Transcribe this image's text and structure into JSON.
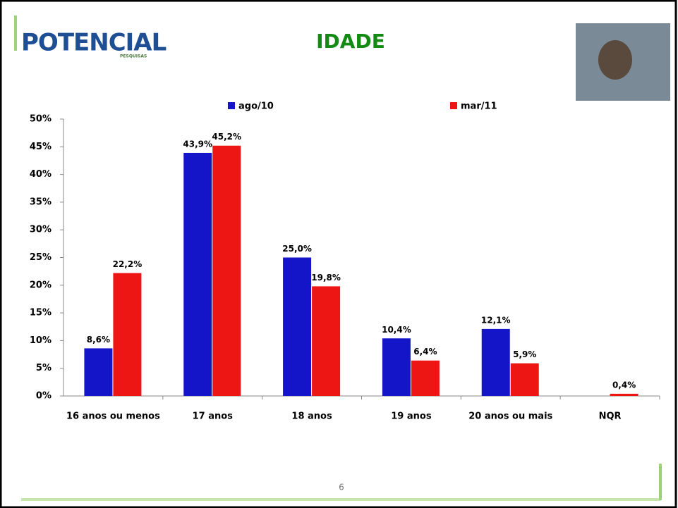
{
  "logo": {
    "name": "POTENCIAL",
    "tagline": "PESQUISAS"
  },
  "page_number": 6,
  "chart_data": {
    "type": "bar",
    "title": "IDADE",
    "categories": [
      "16 anos ou menos",
      "17 anos",
      "18 anos",
      "19 anos",
      "20 anos ou mais",
      "NQR"
    ],
    "series": [
      {
        "name": "ago/10",
        "color": "#1414c8",
        "values": [
          8.6,
          43.9,
          25.0,
          10.4,
          12.1,
          null
        ],
        "value_labels": [
          "8,6%",
          "43,9%",
          "25,0%",
          "10,4%",
          "12,1%",
          null
        ]
      },
      {
        "name": "mar/11",
        "color": "#ee1515",
        "values": [
          22.2,
          45.2,
          19.8,
          6.4,
          5.9,
          0.4
        ],
        "value_labels": [
          "22,2%",
          "45,2%",
          "19,8%",
          "6,4%",
          "5,9%",
          "0,4%"
        ]
      }
    ],
    "ylim": [
      0,
      50
    ],
    "yticks": [
      {
        "value": 0,
        "label": "0%"
      },
      {
        "value": 5,
        "label": "5%"
      },
      {
        "value": 10,
        "label": "10%"
      },
      {
        "value": 15,
        "label": "15%"
      },
      {
        "value": 20,
        "label": "20%"
      },
      {
        "value": 25,
        "label": "25%"
      },
      {
        "value": 30,
        "label": "30%"
      },
      {
        "value": 35,
        "label": "35%"
      },
      {
        "value": 40,
        "label": "40%"
      },
      {
        "value": 45,
        "label": "45%"
      },
      {
        "value": 50,
        "label": "50%"
      }
    ],
    "grid": false
  }
}
